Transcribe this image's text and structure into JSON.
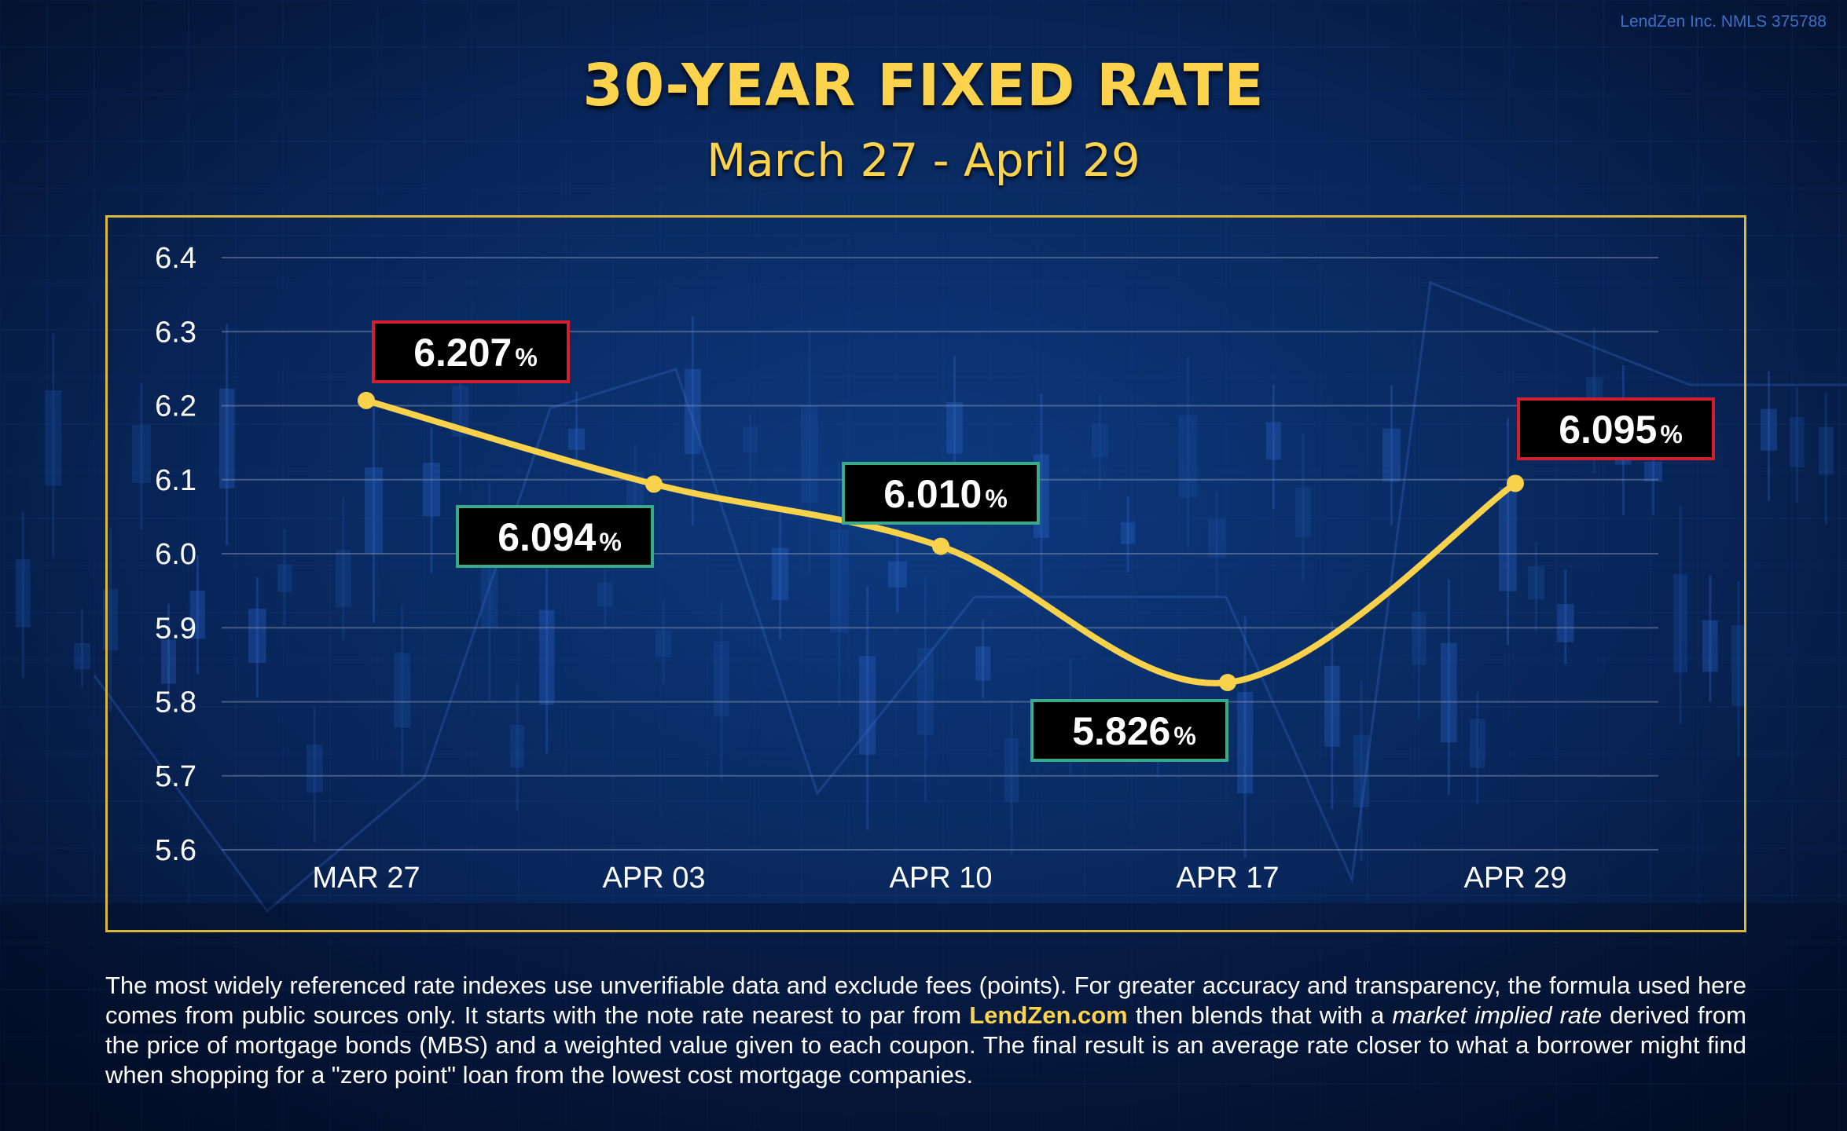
{
  "header": {
    "nmls": "LendZen Inc. NMLS 375788",
    "title": "30-YEAR FIXED RATE",
    "subtitle": "March 27 - April 29"
  },
  "colors": {
    "background": "#061634",
    "accent_yellow": "#fcd34d",
    "line": "#f8d24a",
    "high_border": "#d02030",
    "low_border": "#3aa98a",
    "frame": "#d9b83d"
  },
  "chart_data": {
    "type": "line",
    "title": "30-YEAR FIXED RATE",
    "subtitle": "March 27 - April 29",
    "xlabel": "",
    "ylabel": "",
    "categories": [
      "MAR 27",
      "APR 03",
      "APR 10",
      "APR 17",
      "APR 29"
    ],
    "series": [
      {
        "values": [
          6.207,
          6.094,
          6.01,
          5.826,
          6.095
        ]
      }
    ],
    "data_labels": [
      "6.207",
      "6.094",
      "6.010",
      "5.826",
      "6.095"
    ],
    "label_unit": "%",
    "label_style": [
      "high",
      "low",
      "low",
      "low",
      "high"
    ],
    "label_position": [
      "above",
      "below",
      "above",
      "below",
      "above"
    ],
    "ylim": [
      5.6,
      6.4
    ],
    "yticks": [
      "6.4",
      "6.3",
      "6.2",
      "6.1",
      "6.0",
      "5.9",
      "5.8",
      "5.7",
      "5.6"
    ],
    "grid": true,
    "legend": "none",
    "curve": "smooth"
  },
  "footer": {
    "text_1": "The most widely referenced rate indexes use unverifiable data and exclude fees (points). For greater accuracy and transparency, the formula used here comes from public sources only. It starts with the note rate nearest to par from ",
    "brand": "LendZen.com",
    "text_2": " then blends that with a ",
    "emphasis": "market implied rate",
    "text_3": " derived from the price of mortgage bonds (MBS) and a weighted value given to each coupon. The final result is an average rate closer to what a borrower might find when shopping for a \"zero point\" loan from the lowest cost mortgage companies."
  }
}
